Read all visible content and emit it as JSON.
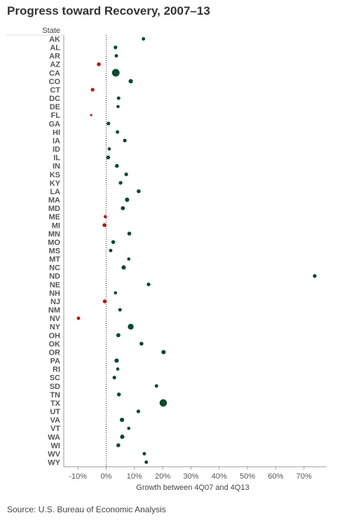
{
  "title": "Progress toward Recovery, 2007–13",
  "source": "Source: U.S. Bureau of Economic Analysis",
  "colors": {
    "positive": "#0d4a2e",
    "negative": "#b41a1a",
    "axis": "#999999",
    "zero_line": "#333333"
  },
  "chart_data": {
    "type": "scatter",
    "title": "Progress toward Recovery, 2007–13",
    "xlabel": "Growth between 4Q07 and 4Q13",
    "ylabel": "State",
    "xlim": [
      -15,
      78
    ],
    "x_ticks": [
      -10,
      0,
      10,
      20,
      30,
      40,
      50,
      60,
      70
    ],
    "x_tick_labels": [
      "-10%",
      "0%",
      "10%",
      "20%",
      "30%",
      "40%",
      "50%",
      "60%",
      "70%"
    ],
    "grid": false,
    "note": "marker size encodes a second quantity (larger states appear larger)",
    "points": [
      {
        "state": "AK",
        "x": 13.2,
        "size": 1.6
      },
      {
        "state": "AL",
        "x": 3.3,
        "size": 1.7
      },
      {
        "state": "AR",
        "x": 3.6,
        "size": 1.6
      },
      {
        "state": "AZ",
        "x": -2.6,
        "size": 1.8
      },
      {
        "state": "CA",
        "x": 3.4,
        "size": 3.5
      },
      {
        "state": "CO",
        "x": 8.7,
        "size": 2.0
      },
      {
        "state": "CT",
        "x": -4.8,
        "size": 1.7
      },
      {
        "state": "DC",
        "x": 4.4,
        "size": 1.6
      },
      {
        "state": "DE",
        "x": 4.2,
        "size": 1.5
      },
      {
        "state": "FL",
        "x": -5.3,
        "size": 1.0
      },
      {
        "state": "GA",
        "x": 0.8,
        "size": 1.7
      },
      {
        "state": "HI",
        "x": 4.0,
        "size": 1.6
      },
      {
        "state": "IA",
        "x": 6.6,
        "size": 1.7
      },
      {
        "state": "ID",
        "x": 1.1,
        "size": 1.5
      },
      {
        "state": "IL",
        "x": 0.7,
        "size": 1.8
      },
      {
        "state": "IN",
        "x": 3.8,
        "size": 1.8
      },
      {
        "state": "KS",
        "x": 7.1,
        "size": 1.7
      },
      {
        "state": "KY",
        "x": 5.1,
        "size": 1.7
      },
      {
        "state": "LA",
        "x": 11.5,
        "size": 1.8
      },
      {
        "state": "MA",
        "x": 7.4,
        "size": 2.0
      },
      {
        "state": "MD",
        "x": 5.9,
        "size": 1.9
      },
      {
        "state": "ME",
        "x": -0.3,
        "size": 1.5
      },
      {
        "state": "MI",
        "x": -0.6,
        "size": 1.8
      },
      {
        "state": "MN",
        "x": 8.2,
        "size": 1.8
      },
      {
        "state": "MO",
        "x": 2.5,
        "size": 1.8
      },
      {
        "state": "MS",
        "x": 1.6,
        "size": 1.6
      },
      {
        "state": "MT",
        "x": 8.0,
        "size": 1.5
      },
      {
        "state": "NC",
        "x": 6.2,
        "size": 2.0
      },
      {
        "state": "ND",
        "x": 73.8,
        "size": 1.7
      },
      {
        "state": "NE",
        "x": 15.0,
        "size": 1.7
      },
      {
        "state": "NH",
        "x": 3.3,
        "size": 1.5
      },
      {
        "state": "NJ",
        "x": -0.5,
        "size": 1.8
      },
      {
        "state": "NM",
        "x": 4.9,
        "size": 1.6
      },
      {
        "state": "NV",
        "x": -9.8,
        "size": 1.6
      },
      {
        "state": "NY",
        "x": 8.7,
        "size": 2.7
      },
      {
        "state": "OH",
        "x": 4.3,
        "size": 1.9
      },
      {
        "state": "OK",
        "x": 12.5,
        "size": 1.8
      },
      {
        "state": "OR",
        "x": 20.3,
        "size": 2.0
      },
      {
        "state": "PA",
        "x": 3.7,
        "size": 2.0
      },
      {
        "state": "RI",
        "x": 4.1,
        "size": 1.5
      },
      {
        "state": "SC",
        "x": 2.9,
        "size": 1.7
      },
      {
        "state": "SD",
        "x": 17.8,
        "size": 1.6
      },
      {
        "state": "TN",
        "x": 4.5,
        "size": 1.8
      },
      {
        "state": "TX",
        "x": 20.2,
        "size": 3.4
      },
      {
        "state": "UT",
        "x": 11.4,
        "size": 1.7
      },
      {
        "state": "VA",
        "x": 5.6,
        "size": 2.0
      },
      {
        "state": "VT",
        "x": 8.0,
        "size": 1.5
      },
      {
        "state": "WA",
        "x": 5.7,
        "size": 2.0
      },
      {
        "state": "WI",
        "x": 4.3,
        "size": 1.8
      },
      {
        "state": "WV",
        "x": 13.5,
        "size": 1.6
      },
      {
        "state": "WY",
        "x": 14.2,
        "size": 1.6
      }
    ]
  }
}
